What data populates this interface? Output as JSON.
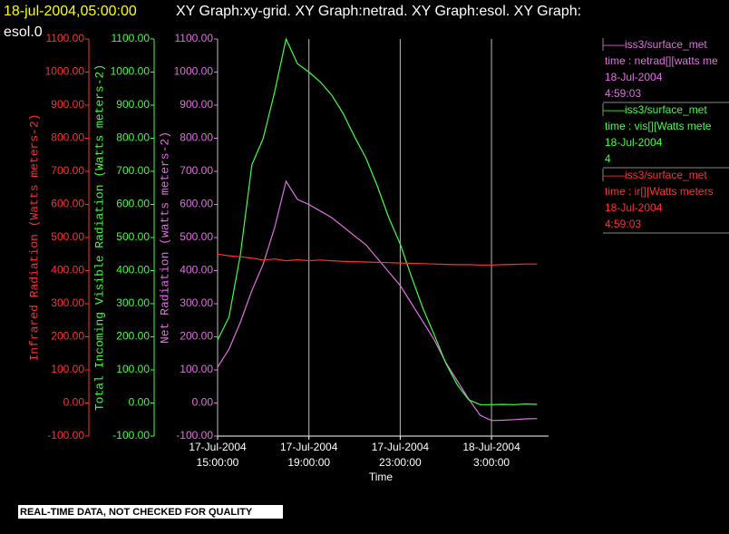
{
  "chart_data": {
    "type": "line",
    "timestamp": "18-jul-2004,05:00:00",
    "title": [
      "XY Graph:xy-grid.  XY Graph:netrad.  XY Graph:esol.  XY Graph:",
      "esol.0"
    ],
    "xlabel": "Time",
    "footer": "REAL-TIME DATA, NOT CHECKED FOR QUALITY",
    "grid": true,
    "xlim": [
      15,
      29.5
    ],
    "xticks": [
      {
        "value": 15,
        "label": [
          "17-Jul-2004",
          "15:00:00"
        ]
      },
      {
        "value": 19,
        "label": [
          "17-Jul-2004",
          "19:00:00"
        ]
      },
      {
        "value": 23,
        "label": [
          "17-Jul-2004",
          "23:00:00"
        ]
      },
      {
        "value": 27,
        "label": [
          "18-Jul-2004",
          "3:00:00"
        ]
      }
    ],
    "axes": [
      {
        "label": "Infrared Radiation (Watts meters-2)",
        "color": "#ff3030",
        "ylim": [
          -100,
          1100
        ],
        "yticks": [
          {
            "value": -100,
            "label": "-100.00"
          },
          {
            "value": 0,
            "label": "0.00"
          },
          {
            "value": 100,
            "label": "100.00"
          },
          {
            "value": 200,
            "label": "200.00"
          },
          {
            "value": 300,
            "label": "300.00"
          },
          {
            "value": 400,
            "label": "400.00"
          },
          {
            "value": 500,
            "label": "500.00"
          },
          {
            "value": 600,
            "label": "600.00"
          },
          {
            "value": 700,
            "label": "700.00"
          },
          {
            "value": 800,
            "label": "800.00"
          },
          {
            "value": 900,
            "label": "900.00"
          },
          {
            "value": 1000,
            "label": "1000.00"
          },
          {
            "value": 1100,
            "label": "1100.00"
          }
        ]
      },
      {
        "label": "Total Incoming Visible Radiation (Watts meters-2)",
        "color": "#40ff40",
        "ylim": [
          -100,
          1100
        ],
        "yticks": [
          {
            "value": -100,
            "label": "-100.00"
          },
          {
            "value": 0,
            "label": "0.00"
          },
          {
            "value": 100,
            "label": "100.00"
          },
          {
            "value": 200,
            "label": "200.00"
          },
          {
            "value": 300,
            "label": "300.00"
          },
          {
            "value": 400,
            "label": "400.00"
          },
          {
            "value": 500,
            "label": "500.00"
          },
          {
            "value": 600,
            "label": "600.00"
          },
          {
            "value": 700,
            "label": "700.00"
          },
          {
            "value": 800,
            "label": "800.00"
          },
          {
            "value": 900,
            "label": "900.00"
          },
          {
            "value": 1000,
            "label": "1000.00"
          },
          {
            "value": 1100,
            "label": "1100.00"
          }
        ]
      },
      {
        "label": "Net Radiation (watts meters-2)",
        "color": "#e070e0",
        "ylim": [
          -100,
          1100
        ],
        "yticks": [
          {
            "value": -100,
            "label": "-100.00"
          },
          {
            "value": 0,
            "label": "0.00"
          },
          {
            "value": 100,
            "label": "100.00"
          },
          {
            "value": 200,
            "label": "200.00"
          },
          {
            "value": 300,
            "label": "300.00"
          },
          {
            "value": 400,
            "label": "400.00"
          },
          {
            "value": 500,
            "label": "500.00"
          },
          {
            "value": 600,
            "label": "600.00"
          },
          {
            "value": 700,
            "label": "700.00"
          },
          {
            "value": 800,
            "label": "800.00"
          },
          {
            "value": 900,
            "label": "900.00"
          },
          {
            "value": 1000,
            "label": "1000.00"
          },
          {
            "value": 1100,
            "label": "1100.00"
          }
        ]
      }
    ],
    "x": [
      15,
      15.5,
      16,
      16.5,
      17,
      17.5,
      18,
      18.5,
      19,
      19.5,
      20,
      20.5,
      21,
      21.5,
      22,
      22.5,
      23,
      23.5,
      24,
      24.5,
      25,
      25.5,
      26,
      26.5,
      27,
      27.5,
      28,
      28.5,
      29
    ],
    "series": [
      {
        "name": "time : netrad[][watts me",
        "source": "——iss3/surface_met",
        "date": "18-Jul-2004",
        "time": "4:59:03",
        "color": "#e070e0",
        "axis": 2,
        "values": [
          108,
          163,
          245,
          340,
          420,
          530,
          670,
          615,
          600,
          580,
          560,
          533,
          505,
          478,
          437,
          396,
          355,
          300,
          245,
          190,
          122,
          67,
          12,
          -37,
          -53,
          -52,
          -50,
          -48,
          -47
        ]
      },
      {
        "name": "time : vis[][Watts mete",
        "source": "——iss3/surface_met",
        "date": "18-Jul-2004",
        "time": "4",
        "color": "#40ff40",
        "axis": 1,
        "values": [
          190,
          260,
          450,
          720,
          800,
          940,
          1100,
          1025,
          1000,
          970,
          930,
          875,
          805,
          740,
          655,
          560,
          480,
          380,
          285,
          205,
          120,
          55,
          10,
          -5,
          -5,
          -4,
          -5,
          -3,
          -4
        ]
      },
      {
        "name": "time : ir[][Watts meters",
        "source": "——iss3/surface_met",
        "date": "18-Jul-2004",
        "time": "4:59:03",
        "color": "#ff3030",
        "axis": 0,
        "values": [
          450,
          445,
          442,
          438,
          432,
          435,
          430,
          433,
          430,
          432,
          430,
          428,
          427,
          426,
          425,
          424,
          423,
          422,
          421,
          420,
          419,
          418,
          418,
          417,
          417,
          418,
          419,
          420,
          420
        ]
      }
    ]
  }
}
